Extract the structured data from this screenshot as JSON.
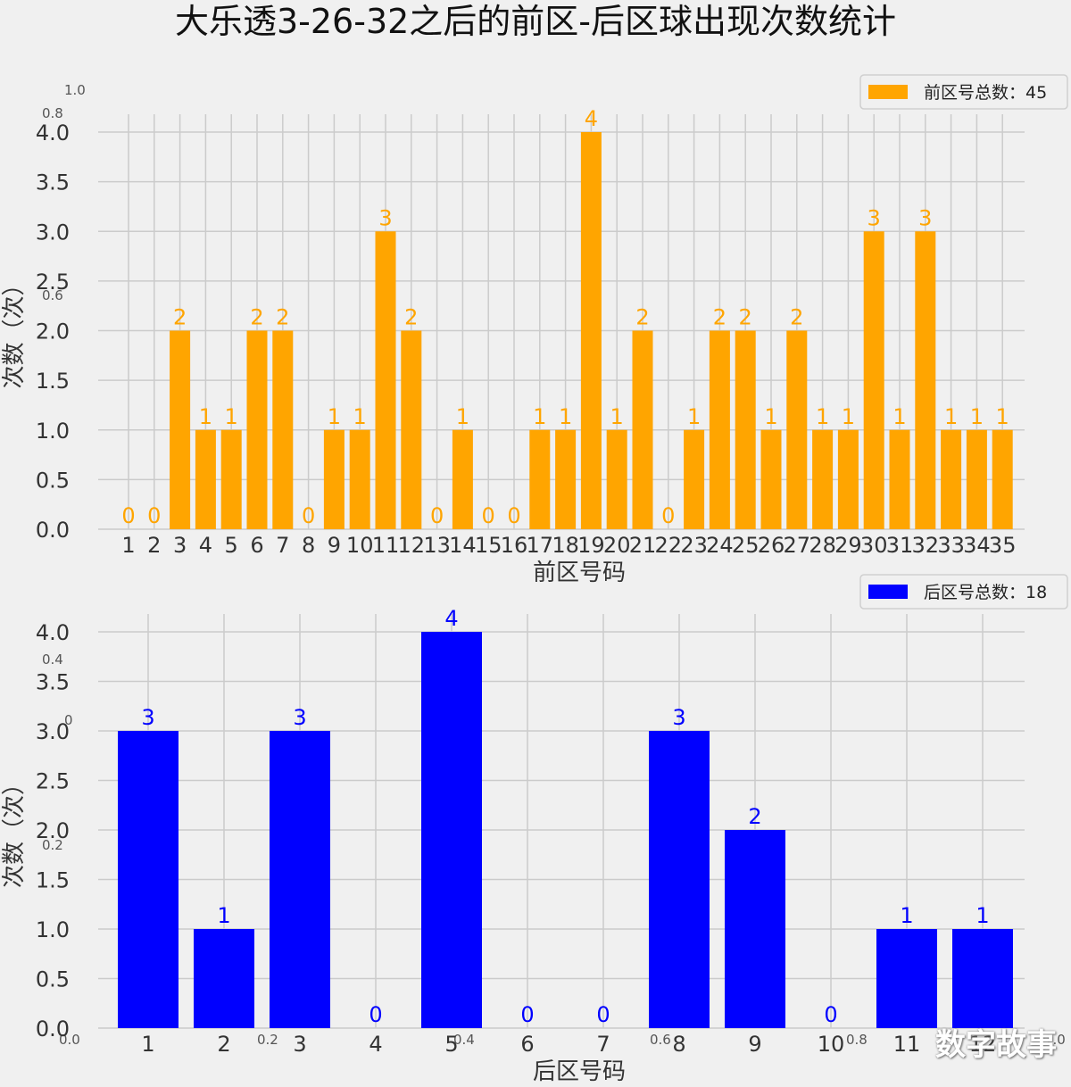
{
  "title": "大乐透3-26-32之后的前区-后区球出现次数统计",
  "watermark": "数字故事",
  "background_axis_ticks": [
    "1.0",
    "0.8",
    "0.6",
    "0.4",
    "0.2",
    "0",
    "0.0",
    "0.2",
    "0.4",
    "0.6",
    "0.8",
    "1.0"
  ],
  "chart_data": [
    {
      "type": "bar",
      "name": "front",
      "color": "#ffa500",
      "xlabel": "前区号码",
      "ylabel": "次数（次）",
      "legend": "前区号总数：45",
      "legend_position": "top-right",
      "grid": true,
      "ylim": [
        0,
        4.0
      ],
      "yticks": [
        "0.0",
        "0.5",
        "1.0",
        "1.5",
        "2.0",
        "2.5",
        "3.0",
        "3.5",
        "4.0"
      ],
      "categories": [
        "1",
        "2",
        "3",
        "4",
        "5",
        "6",
        "7",
        "8",
        "9",
        "10",
        "11",
        "12",
        "13",
        "14",
        "15",
        "16",
        "17",
        "18",
        "19",
        "20",
        "21",
        "22",
        "23",
        "24",
        "25",
        "26",
        "27",
        "28",
        "29",
        "30",
        "31",
        "32",
        "33",
        "34",
        "35"
      ],
      "values": [
        0,
        0,
        2,
        1,
        1,
        2,
        2,
        0,
        1,
        1,
        3,
        2,
        0,
        1,
        0,
        0,
        1,
        1,
        4,
        1,
        2,
        0,
        1,
        2,
        2,
        1,
        2,
        1,
        1,
        3,
        1,
        3,
        1,
        1,
        1
      ]
    },
    {
      "type": "bar",
      "name": "back",
      "color": "#0000ff",
      "xlabel": "后区号码",
      "ylabel": "次数（次）",
      "legend": "后区号总数：18",
      "legend_position": "top-right",
      "grid": true,
      "ylim": [
        0,
        4.0
      ],
      "yticks": [
        "0.0",
        "0.5",
        "1.0",
        "1.5",
        "2.0",
        "2.5",
        "3.0",
        "3.5",
        "4.0"
      ],
      "categories": [
        "1",
        "2",
        "3",
        "4",
        "5",
        "6",
        "7",
        "8",
        "9",
        "10",
        "11",
        "12"
      ],
      "values": [
        3,
        1,
        3,
        0,
        4,
        0,
        0,
        3,
        2,
        0,
        1,
        1
      ]
    }
  ]
}
